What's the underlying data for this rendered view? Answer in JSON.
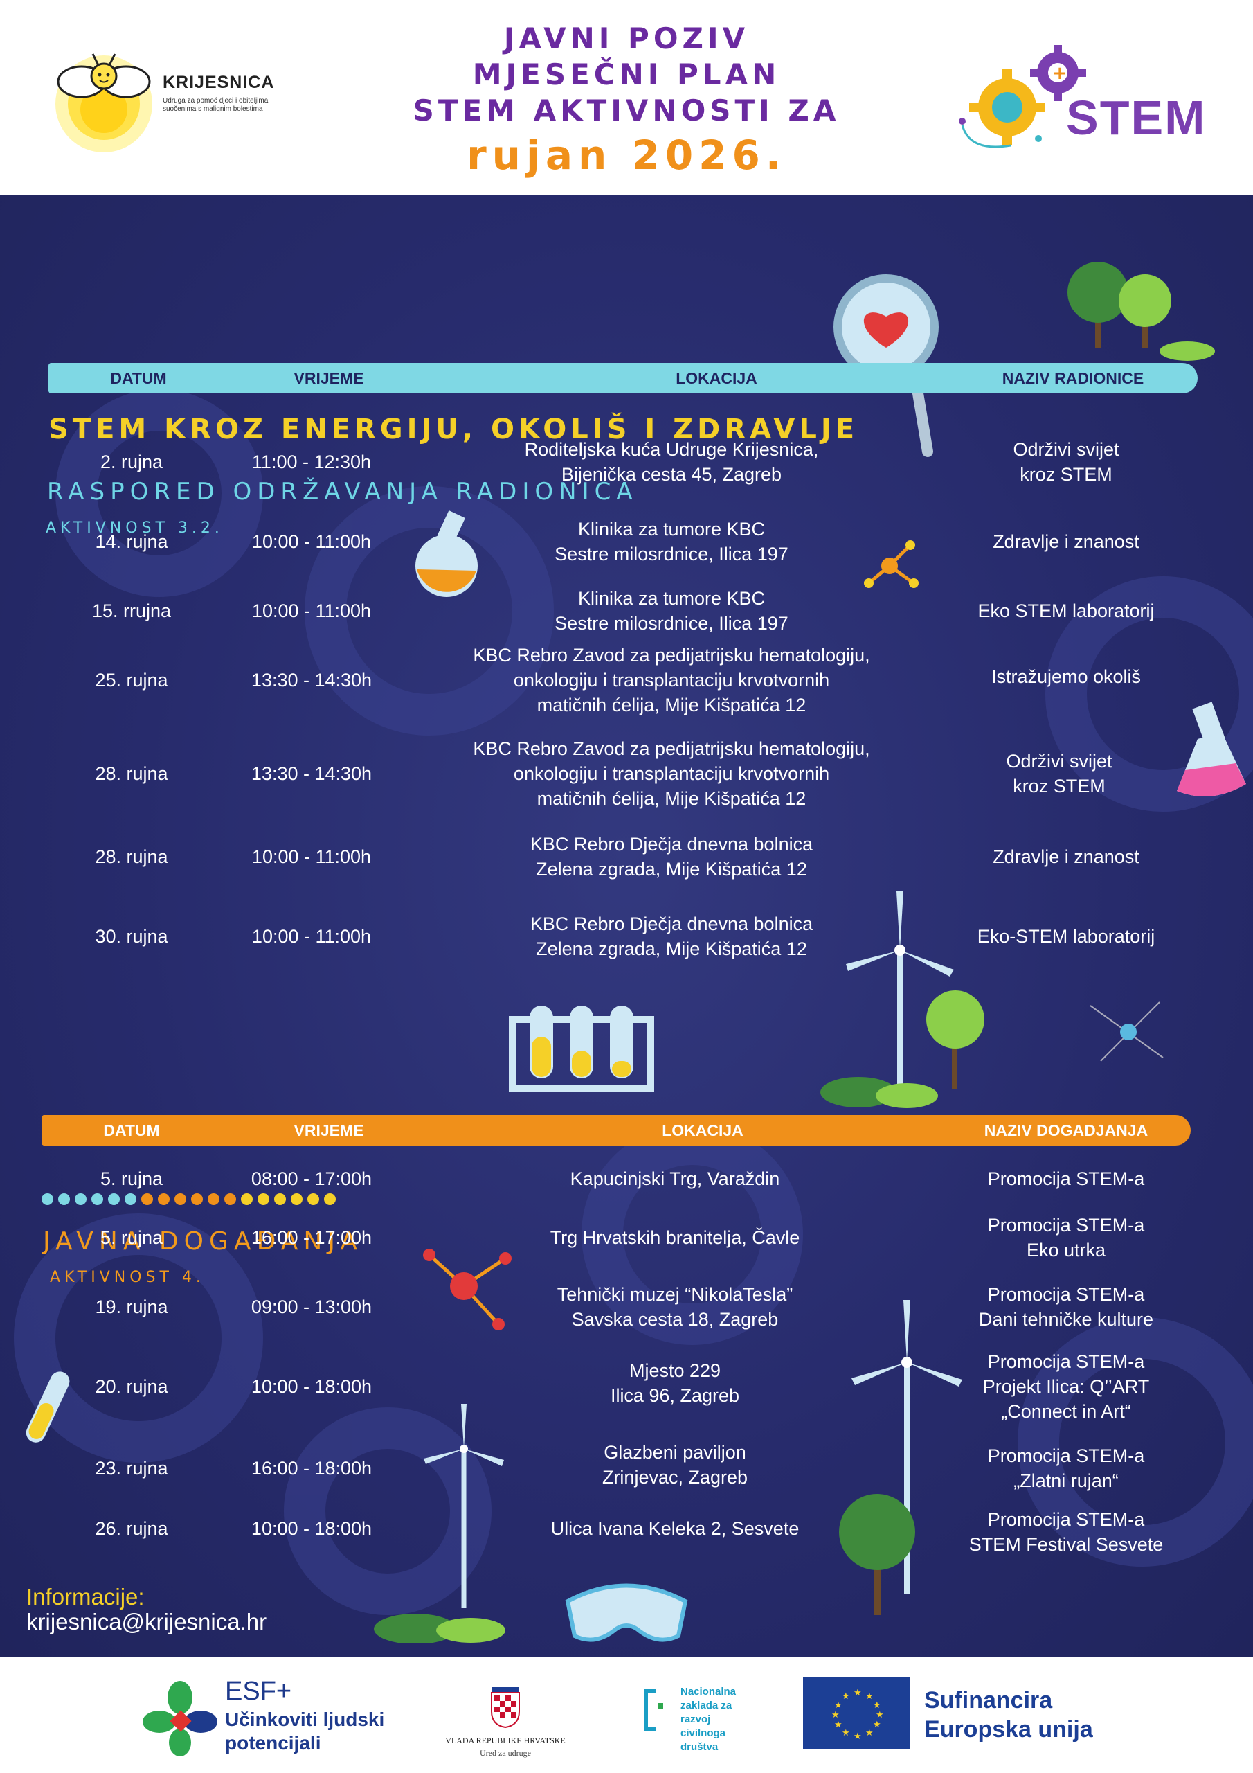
{
  "header": {
    "title_lines": [
      "Javni poziv",
      "Mjesečni plan",
      "STEM aktivnosti za"
    ],
    "title_month": "rujan 2026.",
    "org_name": "KRIJESNICA",
    "org_subtitle": "Udruga za pomoć djeci i obiteljima suočenima s malignim bolestima",
    "stem_logo_text": "STEM"
  },
  "workshops": {
    "section_title": "STEM kroz energiju, okoliš i zdravlje",
    "subtitle": "Raspored održavanja radionica",
    "activity": "Aktivnost 3.2.",
    "columns": [
      "DATUM",
      "VRIJEME",
      "LOKACIJA",
      "NAZIV RADIONICE"
    ],
    "rows": [
      {
        "date": "2. rujna",
        "time": "11:00 - 12:30h",
        "location": "Roditeljska kuća Udruge Krijesnica,\nBijenička cesta 45, Zagreb",
        "name": "Održivi svijet\nkroz STEM"
      },
      {
        "date": "14. rujna",
        "time": "10:00 - 11:00h",
        "location": "Klinika za tumore KBC\nSestre milosrdnice, Ilica 197",
        "name": "Zdravlje i znanost"
      },
      {
        "date": "15. rrujna",
        "time": "10:00 - 11:00h",
        "location": "Klinika za tumore KBC\nSestre milosrdnice, Ilica 197",
        "name": "Eko STEM laboratorij"
      },
      {
        "date": "25. rujna",
        "time": "13:30 - 14:30h",
        "location": "KBC Rebro Zavod za pedijatrijsku hematologiju,\nonkologiju i transplantaciju krvotvornih\nmatičnih ćelija, Mije Kišpatića 12",
        "name": "Istražujemo okoliš"
      },
      {
        "date": "28. rujna",
        "time": "13:30 - 14:30h",
        "location": "KBC Rebro Zavod za pedijatrijsku hematologiju,\nonkologiju i transplantaciju krvotvornih\nmatičnih ćelija, Mije Kišpatića 12",
        "name": "Održivi svijet\nkroz STEM"
      },
      {
        "date": "28. rujna",
        "time": "10:00 - 11:00h",
        "location": "KBC Rebro Dječja dnevna bolnica\nZelena zgrada, Mije Kišpatića 12",
        "name": "Zdravlje i znanost"
      },
      {
        "date": "30. rujna",
        "time": "10:00 - 11:00h",
        "location": "KBC Rebro Dječja dnevna bolnica\nZelena zgrada, Mije Kišpatića 12",
        "name": "Eko-STEM laboratorij"
      }
    ]
  },
  "events": {
    "title": "Javna događanja",
    "activity": "Aktivnost 4.",
    "columns": [
      "DATUM",
      "VRIJEME",
      "LOKACIJA",
      "NAZIV DOGADJANJA"
    ],
    "rows": [
      {
        "date": "5. rujna",
        "time": "08:00 - 17:00h",
        "location": "Kapucinjski Trg,  Varaždin",
        "name": "Promocija STEM-a"
      },
      {
        "date": "5. rujna",
        "time": "16:00 - 17:00h",
        "location": "Trg Hrvatskih branitelja, Čavle",
        "name": "Promocija STEM-a\nEko utrka"
      },
      {
        "date": "19. rujna",
        "time": "09:00 - 13:00h",
        "location": "Tehnički muzej “NikolaTesla”\nSavska cesta 18, Zagreb",
        "name": "Promocija STEM-a\nDani tehničke kulture"
      },
      {
        "date": "20. rujna",
        "time": "10:00 - 18:00h",
        "location": "Mjesto 229\nIlica 96, Zagreb",
        "name": "Promocija STEM-a\nProjekt Ilica: Q’’ART\n„Connect in Art“"
      },
      {
        "date": "23. rujna",
        "time": "16:00 - 18:00h",
        "location": "Glazbeni paviljon\nZrinjevac, Zagreb",
        "name": "Promocija STEM-a\n„Zlatni rujan“"
      },
      {
        "date": "26. rujna",
        "time": "10:00 - 18:00h",
        "location": "Ulica Ivana Keleka 2, Sesvete",
        "name": "Promocija STEM-a\nSTEM Festival Sesvete"
      }
    ]
  },
  "info": {
    "label": "Informacije:",
    "email": "krijesnica@krijesnica.hr"
  },
  "footer": {
    "esf_title": "ESF+",
    "esf_text": "Učinkoviti ljudski\npotencijali",
    "vlada_text": "VLADA REPUBLIKE HRVATSKE",
    "vlada_sub": "Ured za udruge",
    "nz_text": "Nacionalna\nzaklada za\nrazvoj\ncivilnoga\ndruštva",
    "eu_text_1": "Sufinancira",
    "eu_text_2": "Europska unija"
  },
  "colors": {
    "background": "#272b6c",
    "workshop_header": "#7fd8e4",
    "event_header": "#f0901a",
    "title_purple": "#6a2aa0",
    "title_orange": "#f0901a",
    "section_yellow": "#f5d028"
  },
  "dot_colors": [
    "#7fd8e4",
    "#7fd8e4",
    "#7fd8e4",
    "#7fd8e4",
    "#7fd8e4",
    "#7fd8e4",
    "#f0901a",
    "#f0901a",
    "#f0901a",
    "#f0901a",
    "#f0901a",
    "#f0901a",
    "#f5d028",
    "#f5d028",
    "#f5d028",
    "#f5d028",
    "#f5d028",
    "#f5d028"
  ]
}
